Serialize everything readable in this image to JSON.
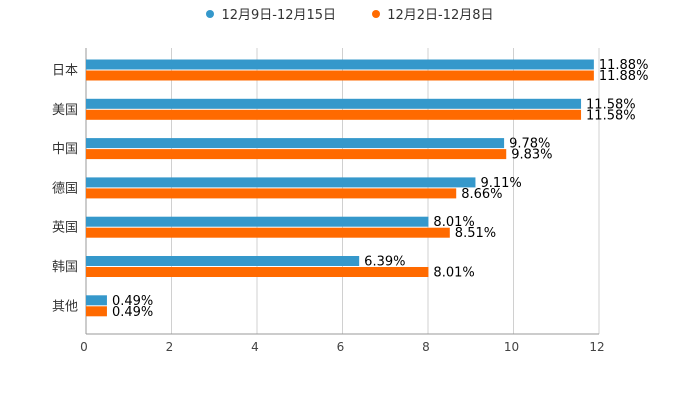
{
  "chart_data": {
    "type": "bar",
    "orientation": "horizontal",
    "categories": [
      "日本",
      "美国",
      "中国",
      "德国",
      "英国",
      "韩国",
      "其他"
    ],
    "series": [
      {
        "name": "12月9日-12月15日",
        "color": "#3598cb",
        "values": [
          11.88,
          11.58,
          9.78,
          9.11,
          8.01,
          6.39,
          0.49
        ],
        "labels": [
          "11.88%",
          "11.58%",
          "9.78%",
          "9.11%",
          "8.01%",
          "6.39%",
          "0.49%"
        ]
      },
      {
        "name": "12月2日-12月8日",
        "color": "#ff6a00",
        "values": [
          11.88,
          11.58,
          9.83,
          8.66,
          8.51,
          8.01,
          0.49
        ],
        "labels": [
          "11.88%",
          "11.58%",
          "9.83%",
          "8.66%",
          "8.51%",
          "8.01%",
          "0.49%"
        ]
      }
    ],
    "xlim": [
      0,
      12
    ],
    "xticks": [
      "0",
      "2",
      "4",
      "6",
      "8",
      "10",
      "12"
    ],
    "grid": true,
    "legend_position": "top-center"
  }
}
